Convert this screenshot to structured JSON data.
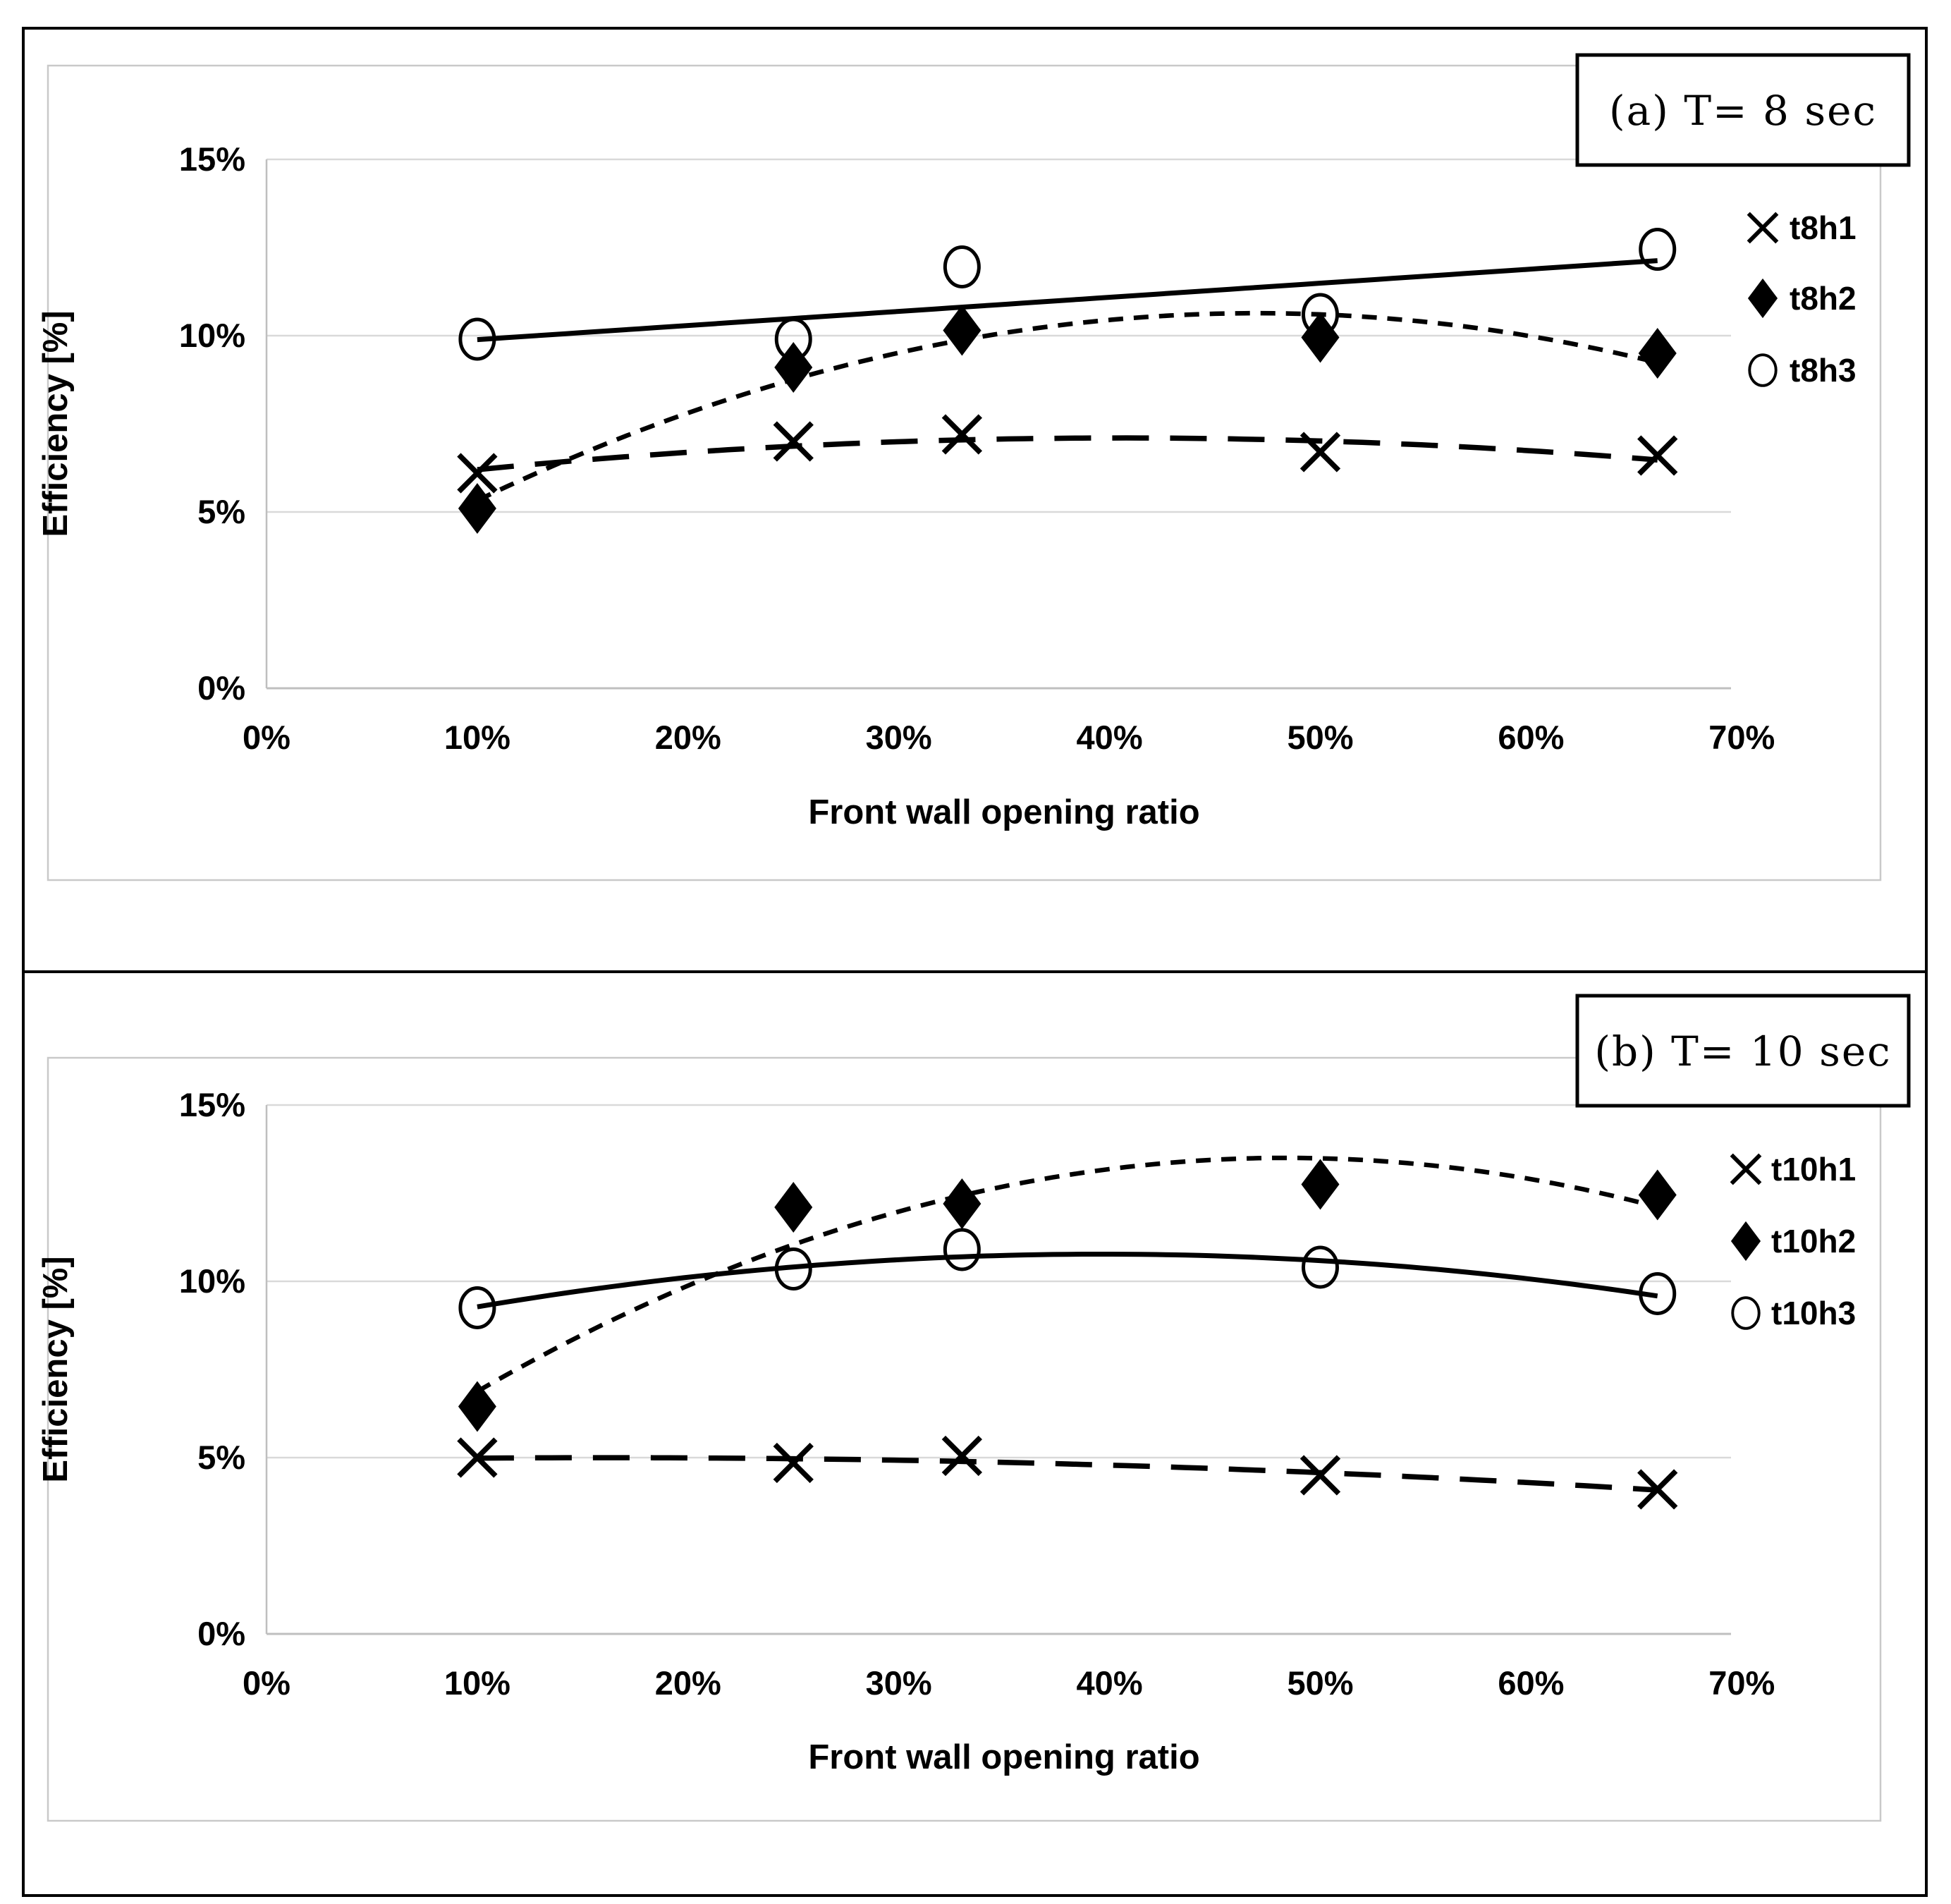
{
  "colors": {
    "ink": "#000000",
    "gridline": "#d9d9d9",
    "axis_line": "#bfbfbf",
    "panel_border": "#c9c9c9",
    "background": "#ffffff"
  },
  "chart_data": [
    {
      "type": "scatter",
      "panel": "a",
      "title": "(a) T= 8 sec",
      "xlabel": "Front wall opening ratio",
      "ylabel": "Efficiency [%]",
      "x": [
        10,
        25,
        33,
        50,
        66
      ],
      "xlim": [
        0,
        70
      ],
      "ylim": [
        0,
        15
      ],
      "x_tick_labels": [
        "0%",
        "10%",
        "20%",
        "30%",
        "40%",
        "50%",
        "60%",
        "70%"
      ],
      "x_tick_values": [
        0,
        10,
        20,
        30,
        40,
        50,
        60,
        70
      ],
      "y_tick_labels": [
        "0%",
        "5%",
        "10%",
        "15%"
      ],
      "y_tick_values": [
        0,
        5,
        10,
        15
      ],
      "grid": true,
      "legend_position": "right",
      "series": [
        {
          "name": "t8h1",
          "marker": "x",
          "trend": "poly2",
          "line_style": "long-dash",
          "values": [
            6.1,
            7.0,
            7.2,
            6.7,
            6.6
          ]
        },
        {
          "name": "t8h2",
          "marker": "diamond",
          "trend": "poly2",
          "line_style": "short-dash",
          "values": [
            5.1,
            9.1,
            10.15,
            9.95,
            9.5
          ]
        },
        {
          "name": "t8h3",
          "marker": "circle",
          "trend": "linear",
          "line_style": "solid",
          "values": [
            9.9,
            9.9,
            11.95,
            10.6,
            12.45
          ]
        }
      ]
    },
    {
      "type": "scatter",
      "panel": "b",
      "title": "(b) T= 10 sec",
      "xlabel": "Front wall opening ratio",
      "ylabel": "Efficiency [%]",
      "x": [
        10,
        25,
        33,
        50,
        66
      ],
      "xlim": [
        0,
        70
      ],
      "ylim": [
        0,
        15
      ],
      "x_tick_labels": [
        "0%",
        "10%",
        "20%",
        "30%",
        "40%",
        "50%",
        "60%",
        "70%"
      ],
      "x_tick_values": [
        0,
        10,
        20,
        30,
        40,
        50,
        60,
        70
      ],
      "y_tick_labels": [
        "0%",
        "5%",
        "10%",
        "15%"
      ],
      "y_tick_values": [
        0,
        5,
        10,
        15
      ],
      "grid": true,
      "legend_position": "right",
      "series": [
        {
          "name": "t10h1",
          "marker": "x",
          "trend": "poly2",
          "line_style": "long-dash",
          "values": [
            5.0,
            4.85,
            5.05,
            4.5,
            4.1
          ]
        },
        {
          "name": "t10h2",
          "marker": "diamond",
          "trend": "poly2",
          "line_style": "short-dash",
          "values": [
            6.45,
            12.1,
            12.2,
            12.75,
            12.45
          ]
        },
        {
          "name": "t10h3",
          "marker": "circle",
          "trend": "poly2",
          "line_style": "solid",
          "values": [
            9.25,
            10.35,
            10.9,
            10.4,
            9.65
          ]
        }
      ]
    }
  ]
}
